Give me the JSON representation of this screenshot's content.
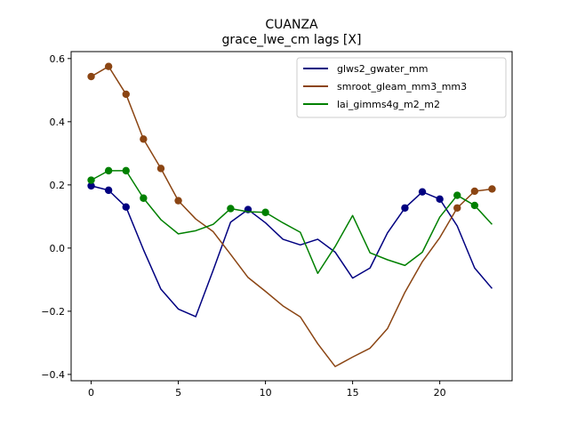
{
  "chart_data": {
    "type": "line",
    "title": "CUANZA",
    "subtitle": "grace_lwe_cm lags [X]",
    "xlabel": "",
    "ylabel": "",
    "xlim": [
      -1.15,
      24.15
    ],
    "ylim": [
      -0.42,
      0.622
    ],
    "xticks": [
      0,
      5,
      10,
      15,
      20
    ],
    "yticks": [
      -0.4,
      -0.2,
      0.0,
      0.2,
      0.4,
      0.6
    ],
    "ytick_labels": [
      "−0.4",
      "−0.2",
      "0.0",
      "0.2",
      "0.4",
      "0.6"
    ],
    "legend_position": "top-right",
    "grid": false,
    "x": [
      0,
      1,
      2,
      3,
      4,
      5,
      6,
      7,
      8,
      9,
      10,
      11,
      12,
      13,
      14,
      15,
      16,
      17,
      18,
      19,
      20,
      21,
      22,
      23
    ],
    "series": [
      {
        "name": "glws2_gwater_mm",
        "color": "#000080",
        "values": [
          0.197,
          0.183,
          0.13,
          -0.005,
          -0.13,
          -0.193,
          -0.217,
          -0.07,
          0.082,
          0.122,
          0.08,
          0.028,
          0.01,
          0.028,
          -0.013,
          -0.095,
          -0.063,
          0.048,
          0.127,
          0.178,
          0.155,
          0.07,
          -0.063,
          -0.128
        ],
        "markers": [
          0,
          1,
          2,
          9,
          18,
          19,
          20
        ]
      },
      {
        "name": "smroot_gleam_mm3_mm3",
        "color": "#8B4513",
        "values": [
          0.543,
          0.575,
          0.487,
          0.345,
          0.252,
          0.15,
          0.092,
          0.052,
          -0.02,
          -0.093,
          -0.137,
          -0.183,
          -0.218,
          -0.303,
          -0.375,
          -0.345,
          -0.317,
          -0.255,
          -0.14,
          -0.043,
          0.033,
          0.127,
          0.18,
          0.187
        ],
        "markers": [
          0,
          1,
          2,
          3,
          4,
          5,
          21,
          22,
          23
        ]
      },
      {
        "name": "lai_gimms4g_m2_m2",
        "color": "#008000",
        "values": [
          0.215,
          0.245,
          0.245,
          0.158,
          0.09,
          0.045,
          0.055,
          0.075,
          0.125,
          0.115,
          0.113,
          0.08,
          0.05,
          -0.08,
          0.005,
          0.103,
          -0.015,
          -0.037,
          -0.055,
          -0.013,
          0.098,
          0.167,
          0.135,
          0.075
        ],
        "markers": [
          0,
          1,
          2,
          3,
          8,
          10,
          21,
          22
        ]
      }
    ]
  }
}
